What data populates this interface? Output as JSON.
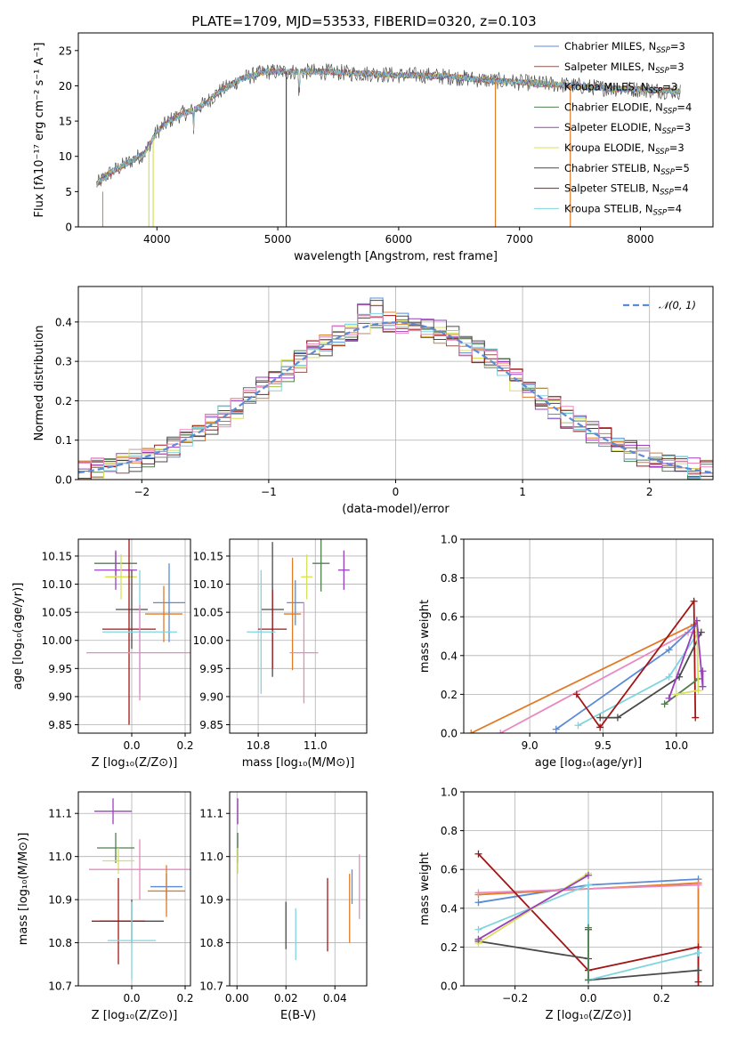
{
  "colors": {
    "Chabrier MILES": "#5b8bd6",
    "Salpeter MILES": "#8c564b",
    "Kroupa MILES": "#e07b27",
    "Chabrier ELODIE": "#4f7f4f",
    "Salpeter ELODIE": "#9b3fbf",
    "Kroupa ELODIE": "#d8e05a",
    "Chabrier STELIB": "#4a4a4a",
    "Salpeter STELIB": "#a31515",
    "Kroupa STELIB": "#80d4e0",
    "pink": "#e88ac0"
  },
  "chart_data": [
    {
      "id": "spectrum",
      "type": "line",
      "title": "PLATE=1709, MJD=53533, FIBERID=0320, z=0.103",
      "xlabel": "wavelength [Angstrom, rest frame]",
      "ylabel": "Flux [fλ10⁻¹⁷ erg cm⁻² s⁻¹ A⁻¹]",
      "xlim": [
        3350,
        8600
      ],
      "ylim": [
        0,
        27.5
      ],
      "xticks": [
        "4000",
        "5000",
        "6000",
        "7000",
        "8000"
      ],
      "yticks": [
        "0",
        "5",
        "10",
        "15",
        "20",
        "25"
      ],
      "legend_position": "right",
      "legend": [
        {
          "label": "Chabrier MILES, N",
          "sub": "SSP",
          "tail": "=3"
        },
        {
          "label": "Salpeter MILES, N",
          "sub": "SSP",
          "tail": "=3"
        },
        {
          "label": "Kroupa MILES, N",
          "sub": "SSP",
          "tail": "=3"
        },
        {
          "label": "Chabrier ELODIE, N",
          "sub": "SSP",
          "tail": "=4"
        },
        {
          "label": "Salpeter ELODIE, N",
          "sub": "SSP",
          "tail": "=3"
        },
        {
          "label": "Kroupa ELODIE, N",
          "sub": "SSP",
          "tail": "=3"
        },
        {
          "label": "Chabrier STELIB, N",
          "sub": "SSP",
          "tail": "=5"
        },
        {
          "label": "Salpeter STELIB, N",
          "sub": "SSP",
          "tail": "=4"
        },
        {
          "label": "Kroupa STELIB, N",
          "sub": "SSP",
          "tail": "=4"
        }
      ],
      "continuum": [
        [
          3500,
          6.0
        ],
        [
          3600,
          7.5
        ],
        [
          3700,
          8.5
        ],
        [
          3800,
          9.5
        ],
        [
          3900,
          10.5
        ],
        [
          4000,
          13.5
        ],
        [
          4100,
          15.0
        ],
        [
          4200,
          16.0
        ],
        [
          4300,
          16.5
        ],
        [
          4400,
          17.5
        ],
        [
          4500,
          19.0
        ],
        [
          4600,
          20.0
        ],
        [
          4700,
          21.0
        ],
        [
          4800,
          21.5
        ],
        [
          4900,
          22.0
        ],
        [
          5000,
          22.0
        ],
        [
          5200,
          22.0
        ],
        [
          5400,
          22.0
        ],
        [
          5600,
          21.8
        ],
        [
          5800,
          21.7
        ],
        [
          6000,
          21.5
        ],
        [
          6200,
          21.5
        ],
        [
          6400,
          21.3
        ],
        [
          6600,
          21.0
        ],
        [
          6800,
          20.7
        ],
        [
          7000,
          20.5
        ],
        [
          7200,
          20.3
        ],
        [
          7400,
          20.1
        ],
        [
          7600,
          19.8
        ],
        [
          7800,
          19.6
        ],
        [
          8000,
          19.5
        ],
        [
          8200,
          19.3
        ],
        [
          8330,
          19.2
        ]
      ],
      "absorption_spikes": [
        [
          3934,
          0.0
        ],
        [
          3969,
          0.0
        ],
        [
          5070,
          0.0
        ],
        [
          6800,
          0.0
        ],
        [
          7420,
          0.0
        ]
      ]
    },
    {
      "id": "residuals",
      "type": "line",
      "xlabel": "(data-model)/error",
      "ylabel": "Normed distribution",
      "xlim": [
        -2.5,
        2.5
      ],
      "ylim": [
        0,
        0.49
      ],
      "xticks": [
        "−2",
        "−1",
        "0",
        "1",
        "2"
      ],
      "yticks": [
        "0.0",
        "0.1",
        "0.2",
        "0.3",
        "0.4"
      ],
      "legend_position": "top-right",
      "legend": "𝒩(0, 1)",
      "grid": true
    },
    {
      "id": "age-vs-Z",
      "type": "scatter",
      "xlabel": "Z [log₁₀(Z/Z⊙)]",
      "ylabel": "age  [log₁₀(age/yr)]",
      "xlim": [
        -0.2,
        0.22
      ],
      "ylim": [
        9.835,
        10.18
      ],
      "xticks": [
        "0.0",
        "0.2"
      ],
      "yticks": [
        "9.85",
        "9.90",
        "9.95",
        "10.00",
        "10.05",
        "10.10",
        "10.15"
      ],
      "grid": true,
      "points": [
        {
          "c": "Chabrier MILES",
          "x": 0.14,
          "y": 10.067,
          "xe": 0.06,
          "ye": 0.07
        },
        {
          "c": "Kroupa MILES",
          "x": 0.12,
          "y": 10.047,
          "xe": 0.07,
          "ye": 0.05
        },
        {
          "c": "Chabrier ELODIE",
          "x": -0.06,
          "y": 10.137,
          "xe": 0.08,
          "ye": 0.02
        },
        {
          "c": "Salpeter ELODIE",
          "x": -0.06,
          "y": 10.125,
          "xe": 0.08,
          "ye": 0.035
        },
        {
          "c": "Kroupa ELODIE",
          "x": -0.04,
          "y": 10.113,
          "xe": 0.06,
          "ye": 0.04
        },
        {
          "c": "Chabrier STELIB",
          "x": 0.0,
          "y": 10.055,
          "xe": 0.06,
          "ye": 0.07
        },
        {
          "c": "Salpeter STELIB",
          "x": -0.01,
          "y": 10.02,
          "xe": 0.1,
          "ye": 0.17
        },
        {
          "c": "Kroupa STELIB",
          "x": 0.03,
          "y": 10.015,
          "xe": 0.14,
          "ye": 0.11
        },
        {
          "c": "pink",
          "x": 0.03,
          "y": 9.978,
          "xe": 0.2,
          "ye": 0.085
        }
      ]
    },
    {
      "id": "age-vs-mass",
      "type": "scatter",
      "xlabel": "mass [log₁₀(M/M⊙)]",
      "ylabel": "",
      "xlim": [
        10.7,
        11.18
      ],
      "ylim": [
        9.835,
        10.18
      ],
      "xticks": [
        "10.8",
        "11.0"
      ],
      "yticks": [
        "9.85",
        "9.90",
        "9.95",
        "10.00",
        "10.05",
        "10.10",
        "10.15"
      ],
      "grid": true,
      "points": [
        {
          "c": "Chabrier MILES",
          "x": 10.93,
          "y": 10.067,
          "xe": 0.03,
          "ye": 0.04
        },
        {
          "c": "Kroupa MILES",
          "x": 10.92,
          "y": 10.047,
          "xe": 0.03,
          "ye": 0.1
        },
        {
          "c": "Chabrier ELODIE",
          "x": 11.02,
          "y": 10.137,
          "xe": 0.03,
          "ye": 0.05
        },
        {
          "c": "Salpeter ELODIE",
          "x": 11.1,
          "y": 10.125,
          "xe": 0.02,
          "ye": 0.035
        },
        {
          "c": "Kroupa ELODIE",
          "x": 10.97,
          "y": 10.113,
          "xe": 0.02,
          "ye": 0.04
        },
        {
          "c": "Chabrier STELIB",
          "x": 10.85,
          "y": 10.055,
          "xe": 0.04,
          "ye": 0.12
        },
        {
          "c": "Salpeter STELIB",
          "x": 10.85,
          "y": 10.02,
          "xe": 0.05,
          "ye": 0.07
        },
        {
          "c": "Kroupa STELIB",
          "x": 10.81,
          "y": 10.015,
          "xe": 0.05,
          "ye": 0.11
        },
        {
          "c": "pink",
          "x": 10.96,
          "y": 9.978,
          "xe": 0.05,
          "ye": 0.09
        }
      ]
    },
    {
      "id": "weight-vs-age",
      "type": "line",
      "xlabel": "age  [log₁₀(age/yr)]",
      "ylabel": "mass weight",
      "xlim": [
        8.55,
        10.25
      ],
      "ylim": [
        0,
        1.0
      ],
      "xticks": [
        "9.0",
        "9.5",
        "10.0"
      ],
      "yticks": [
        "0.0",
        "0.2",
        "0.4",
        "0.6",
        "0.8",
        "1.0"
      ],
      "grid": true,
      "series": [
        {
          "c": "Kroupa MILES",
          "points": [
            [
              8.6,
              0.0
            ],
            [
              10.12,
              0.56
            ]
          ]
        },
        {
          "c": "pink",
          "points": [
            [
              8.8,
              0.0
            ],
            [
              10.08,
              0.52
            ]
          ]
        },
        {
          "c": "Chabrier MILES",
          "points": [
            [
              9.18,
              0.02
            ],
            [
              9.95,
              0.43
            ],
            [
              10.12,
              0.55
            ]
          ]
        },
        {
          "c": "Kroupa STELIB",
          "points": [
            [
              9.33,
              0.04
            ],
            [
              9.95,
              0.29
            ],
            [
              10.15,
              0.52
            ]
          ]
        },
        {
          "c": "Salpeter STELIB",
          "points": [
            [
              9.32,
              0.2
            ],
            [
              9.48,
              0.03
            ],
            [
              10.12,
              0.68
            ],
            [
              10.13,
              0.08
            ]
          ]
        },
        {
          "c": "Chabrier STELIB",
          "points": [
            [
              9.48,
              0.08
            ],
            [
              9.6,
              0.08
            ],
            [
              10.02,
              0.29
            ],
            [
              10.17,
              0.52
            ]
          ]
        },
        {
          "c": "Chabrier ELODIE",
          "points": [
            [
              9.92,
              0.15
            ],
            [
              10.15,
              0.28
            ]
          ]
        },
        {
          "c": "Kroupa ELODIE",
          "points": [
            [
              10.0,
              0.2
            ],
            [
              10.15,
              0.22
            ],
            [
              10.14,
              0.58
            ]
          ]
        },
        {
          "c": "Salpeter ELODIE",
          "points": [
            [
              9.95,
              0.18
            ],
            [
              10.14,
              0.58
            ],
            [
              10.18,
              0.24
            ],
            [
              10.18,
              0.32
            ]
          ]
        }
      ]
    },
    {
      "id": "mass-vs-Z",
      "type": "scatter",
      "xlabel": "Z [log₁₀(Z/Z⊙)]",
      "ylabel": "mass [log₁₀(M/M⊙)]",
      "xlim": [
        -0.2,
        0.22
      ],
      "ylim": [
        10.7,
        11.15
      ],
      "xticks": [
        "0.0",
        "0.2"
      ],
      "yticks": [
        "10.7",
        "10.8",
        "10.9",
        "11.0",
        "11.1"
      ],
      "grid": true,
      "points": [
        {
          "c": "Salpeter ELODIE",
          "x": -0.07,
          "y": 11.105,
          "xe": 0.07,
          "ye": 0.03
        },
        {
          "c": "Chabrier ELODIE",
          "x": -0.06,
          "y": 11.02,
          "xe": 0.07,
          "ye": 0.035
        },
        {
          "c": "Kroupa ELODIE",
          "x": -0.05,
          "y": 10.99,
          "xe": 0.06,
          "ye": 0.03
        },
        {
          "c": "pink",
          "x": 0.03,
          "y": 10.97,
          "xe": 0.19,
          "ye": 0.07
        },
        {
          "c": "Chabrier MILES",
          "x": 0.13,
          "y": 10.93,
          "xe": 0.06,
          "ye": 0.03
        },
        {
          "c": "Kroupa MILES",
          "x": 0.13,
          "y": 10.92,
          "xe": 0.07,
          "ye": 0.06
        },
        {
          "c": "Chabrier STELIB",
          "x": 0.0,
          "y": 10.85,
          "xe": 0.12,
          "ye": 0.05
        },
        {
          "c": "Salpeter STELIB",
          "x": -0.05,
          "y": 10.85,
          "xe": 0.1,
          "ye": 0.1
        },
        {
          "c": "Kroupa STELIB",
          "x": 0.0,
          "y": 10.805,
          "xe": 0.09,
          "ye": 0.09
        }
      ]
    },
    {
      "id": "mass-vs-ebv",
      "type": "scatter",
      "xlabel": "E(B-V)",
      "ylabel": "",
      "xlim": [
        -0.003,
        0.053
      ],
      "ylim": [
        10.7,
        11.15
      ],
      "xticks": [
        "0.00",
        "0.02",
        "0.04"
      ],
      "yticks": [
        "10.7",
        "10.8",
        "10.9",
        "11.0",
        "11.1"
      ],
      "grid": true,
      "points": [
        {
          "c": "Salpeter ELODIE",
          "x": 0.0003,
          "y": 11.105,
          "xe": 0,
          "ye": 0.03
        },
        {
          "c": "Chabrier ELODIE",
          "x": 0.0003,
          "y": 11.02,
          "xe": 0,
          "ye": 0.035
        },
        {
          "c": "Kroupa ELODIE",
          "x": 0.0003,
          "y": 10.99,
          "xe": 0,
          "ye": 0.03
        },
        {
          "c": "Chabrier STELIB",
          "x": 0.02,
          "y": 10.84,
          "xe": 0,
          "ye": 0.055
        },
        {
          "c": "Kroupa STELIB",
          "x": 0.024,
          "y": 10.82,
          "xe": 0,
          "ye": 0.06
        },
        {
          "c": "Salpeter STELIB",
          "x": 0.037,
          "y": 10.865,
          "xe": 0,
          "ye": 0.085
        },
        {
          "c": "Kroupa MILES",
          "x": 0.046,
          "y": 10.88,
          "xe": 0,
          "ye": 0.08
        },
        {
          "c": "Chabrier MILES",
          "x": 0.047,
          "y": 10.93,
          "xe": 0,
          "ye": 0.04
        },
        {
          "c": "pink",
          "x": 0.05,
          "y": 10.93,
          "xe": 0,
          "ye": 0.075
        }
      ]
    },
    {
      "id": "weight-vs-Z",
      "type": "line",
      "xlabel": "Z [log₁₀(Z/Z⊙)]",
      "ylabel": "mass weight",
      "xlim": [
        -0.34,
        0.34
      ],
      "ylim": [
        0,
        1.0
      ],
      "xticks": [
        "−0.2",
        "0.0",
        "0.2"
      ],
      "yticks": [
        "0.0",
        "0.2",
        "0.4",
        "0.6",
        "0.8",
        "1.0"
      ],
      "grid": true,
      "series": [
        {
          "c": "Chabrier MILES",
          "points": [
            [
              -0.3,
              0.43
            ],
            [
              0.0,
              0.52
            ],
            [
              0.3,
              0.55
            ]
          ]
        },
        {
          "c": "Kroupa MILES",
          "points": [
            [
              -0.3,
              0.47
            ],
            [
              0.0,
              0.5
            ],
            [
              0.3,
              0.53
            ],
            [
              0.3,
              0.0
            ]
          ]
        },
        {
          "c": "pink",
          "points": [
            [
              -0.3,
              0.48
            ],
            [
              0.0,
              0.5
            ],
            [
              0.3,
              0.52
            ]
          ]
        },
        {
          "c": "Salpeter STELIB",
          "points": [
            [
              -0.3,
              0.68
            ],
            [
              0.0,
              0.08
            ],
            [
              0.3,
              0.2
            ],
            [
              0.3,
              0.02
            ]
          ]
        },
        {
          "c": "Chabrier STELIB",
          "points": [
            [
              -0.3,
              0.23
            ],
            [
              0.0,
              0.14
            ],
            [
              0.0,
              0.29
            ],
            [
              0.0,
              0.03
            ],
            [
              0.3,
              0.08
            ]
          ]
        },
        {
          "c": "Kroupa STELIB",
          "points": [
            [
              -0.3,
              0.29
            ],
            [
              0.0,
              0.52
            ],
            [
              0.0,
              0.03
            ],
            [
              0.3,
              0.17
            ]
          ]
        },
        {
          "c": "Kroupa ELODIE",
          "points": [
            [
              -0.3,
              0.22
            ],
            [
              0.0,
              0.58
            ]
          ]
        },
        {
          "c": "Salpeter ELODIE",
          "points": [
            [
              -0.3,
              0.24
            ],
            [
              0.0,
              0.57
            ]
          ]
        },
        {
          "c": "Chabrier ELODIE",
          "points": [
            [
              0.0,
              0.3
            ],
            [
              0.0,
              0.03
            ]
          ]
        }
      ]
    }
  ]
}
